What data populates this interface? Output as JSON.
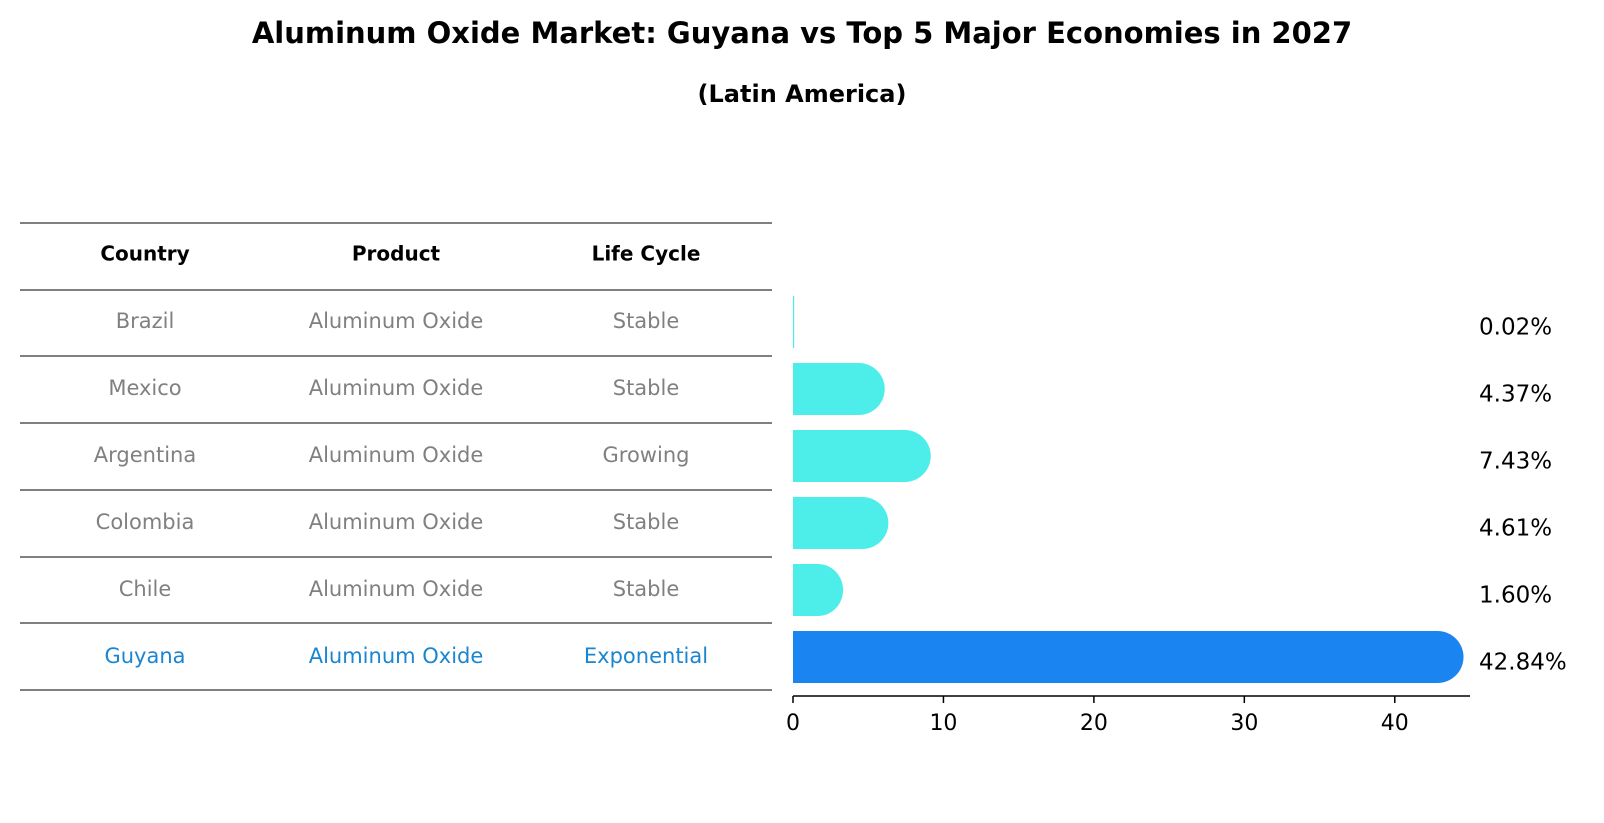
{
  "title": "Aluminum Oxide Market: Guyana vs Top 5 Major Economies in 2027",
  "subtitle": "(Latin America)",
  "colors": {
    "bar_default": "#4DEEEA",
    "bar_highlight": "#1A85F0",
    "text_muted": "#808080",
    "text_highlight": "#1A85D0",
    "text_dark": "#000000"
  },
  "table": {
    "headers": [
      "Country",
      "Product",
      "Life Cycle"
    ],
    "rows": [
      {
        "country": "Brazil",
        "product": "Aluminum Oxide",
        "life_cycle": "Stable",
        "highlight": false
      },
      {
        "country": "Mexico",
        "product": "Aluminum Oxide",
        "life_cycle": "Stable",
        "highlight": false
      },
      {
        "country": "Argentina",
        "product": "Aluminum Oxide",
        "life_cycle": "Growing",
        "highlight": false
      },
      {
        "country": "Colombia",
        "product": "Aluminum Oxide",
        "life_cycle": "Stable",
        "highlight": false
      },
      {
        "country": "Chile",
        "product": "Aluminum Oxide",
        "life_cycle": "Stable",
        "highlight": false
      },
      {
        "country": "Guyana",
        "product": "Aluminum Oxide",
        "life_cycle": "Exponential",
        "highlight": true
      }
    ]
  },
  "chart_data": {
    "type": "bar",
    "orientation": "horizontal",
    "title": "Aluminum Oxide Market: Guyana vs Top 5 Major Economies in 2027",
    "subtitle": "(Latin America)",
    "categories": [
      "Brazil",
      "Mexico",
      "Argentina",
      "Colombia",
      "Chile",
      "Guyana"
    ],
    "values": [
      0.02,
      4.37,
      7.43,
      4.61,
      1.6,
      42.84
    ],
    "value_labels": [
      "0.02%",
      "4.37%",
      "7.43%",
      "4.61%",
      "1.60%",
      "42.84%"
    ],
    "highlight": "Guyana",
    "xlim": [
      0,
      45
    ],
    "xticks": [
      0,
      10,
      20,
      30,
      40
    ],
    "xlabel": "",
    "ylabel": "",
    "grid": false
  }
}
